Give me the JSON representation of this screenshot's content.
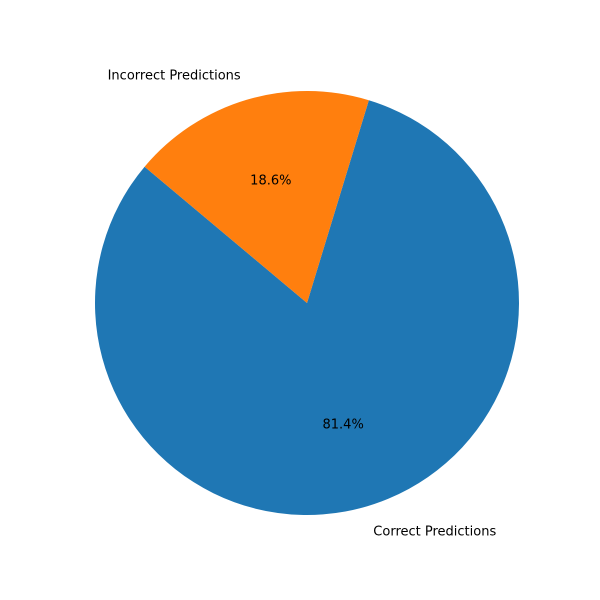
{
  "chart_data": {
    "type": "pie",
    "title": "",
    "categories": [
      "Correct Predictions",
      "Incorrect Predictions"
    ],
    "values": [
      81.4,
      18.6
    ],
    "percent_labels": [
      "81.4%",
      "18.6%"
    ],
    "colors": [
      "#1f77b4",
      "#ff7f0e"
    ],
    "start_angle_deg": 140,
    "counterclockwise": true,
    "legend": "none"
  }
}
